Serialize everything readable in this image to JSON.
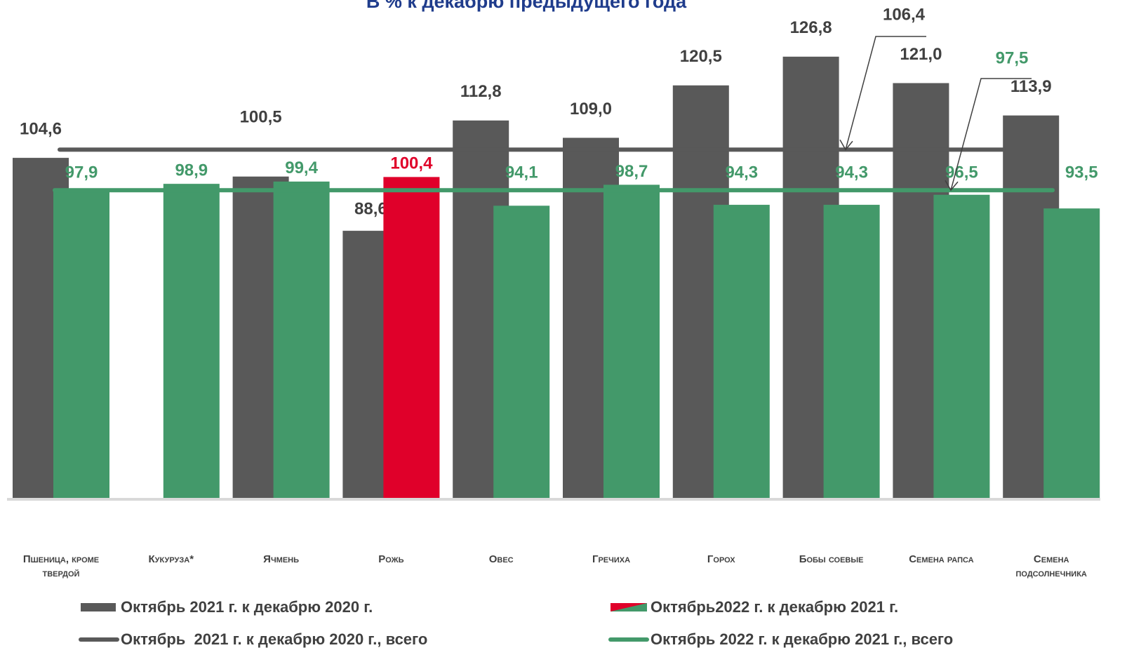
{
  "chart_data": {
    "type": "bar",
    "title": "В % к декабрю предыдущего года",
    "categories": [
      "Пшеница, кроме\nтвердой",
      "Кукуруза*",
      "Ячмень",
      "Рожь",
      "Овес",
      "Гречиха",
      "Горох",
      "Бобы соевые",
      "Семена рапса",
      "Семена\nподсолнечника"
    ],
    "ylim": [
      30,
      140
    ],
    "series": [
      {
        "name": "Октябрь 2021 г. к декабрю 2020 г.",
        "color": "#595959",
        "values": [
          104.6,
          null,
          100.5,
          88.6,
          112.8,
          109.0,
          120.5,
          126.8,
          121.0,
          113.9
        ],
        "value_labels": [
          "104,6",
          null,
          "100,5",
          "88,6",
          "112,8",
          "109,0",
          "120,5",
          "126,8",
          "121,0",
          "113,9"
        ]
      },
      {
        "name": "Октябрь2022 г. к декабрю 2021 г.",
        "color": "#43996a",
        "colors": [
          "#43996a",
          "#43996a",
          "#43996a",
          "#e0002a",
          "#43996a",
          "#43996a",
          "#43996a",
          "#43996a",
          "#43996a",
          "#43996a"
        ],
        "values": [
          97.9,
          98.9,
          99.4,
          100.4,
          94.1,
          98.7,
          94.3,
          94.3,
          96.5,
          93.5
        ],
        "value_labels": [
          "97,9",
          "98,9",
          "99,4",
          "100,4",
          "94,1",
          "98,7",
          "94,3",
          "94,3",
          "96,5",
          "93,5"
        ]
      }
    ],
    "lines": [
      {
        "name": "Октябрь  2021 г. к декабрю 2020 г., всего",
        "color": "#595959",
        "value": 106.4,
        "value_label": "106,4"
      },
      {
        "name": "Октябрь 2022 г. к декабрю 2021 г., всего",
        "color": "#43996a",
        "value": 97.5,
        "value_label": "97,5"
      }
    ]
  }
}
